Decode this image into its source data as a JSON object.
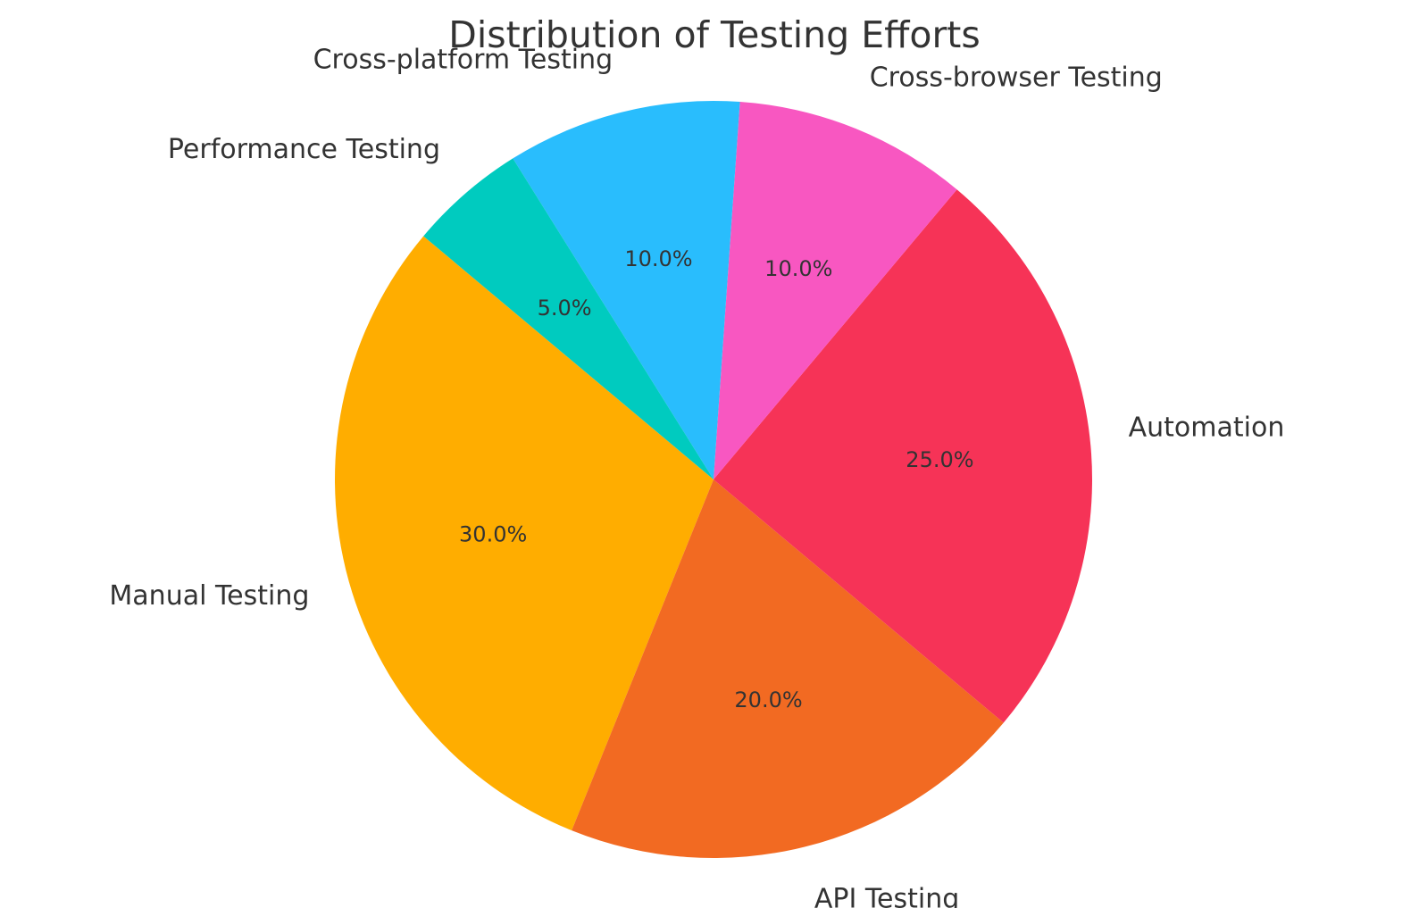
{
  "chart_data": {
    "type": "pie",
    "title": "Distribution of Testing Efforts",
    "categories": [
      "Manual Testing",
      "API Testing",
      "Automation",
      "Cross-browser Testing",
      "Cross-platform Testing",
      "Performance Testing"
    ],
    "values": [
      30,
      20,
      25,
      10,
      10,
      5
    ],
    "value_labels": [
      "30.0%",
      "20.0%",
      "25.0%",
      "10.0%",
      "10.0%",
      "5.0%"
    ],
    "colors": [
      "#FFAD00",
      "#F26A22",
      "#F63357",
      "#F857C1",
      "#29BDFD",
      "#00CBBF"
    ],
    "start_angle_deg": 140,
    "direction": "counterclockwise",
    "legend": "none"
  }
}
